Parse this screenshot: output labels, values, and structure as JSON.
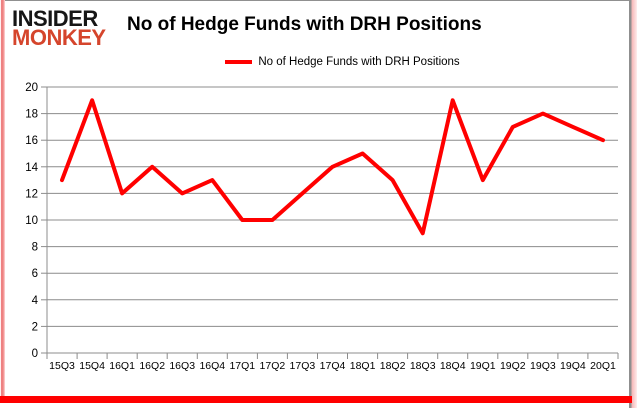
{
  "logo": {
    "line1": "INSIDER",
    "line2": "MONKEY"
  },
  "header": {
    "title": "No of Hedge Funds with DRH Positions"
  },
  "legend": {
    "label": "No of Hedge Funds with DRH Positions"
  },
  "colors": {
    "line": "#ff0000",
    "grid": "#8c8c8c",
    "logo_accent": "#d5452c",
    "frame_bottom": "#ff0000",
    "text": "#000000"
  },
  "chart_data": {
    "type": "line",
    "title": "No of Hedge Funds with DRH Positions",
    "categories": [
      "15Q3",
      "15Q4",
      "16Q1",
      "16Q2",
      "16Q3",
      "16Q4",
      "17Q1",
      "17Q2",
      "17Q3",
      "17Q4",
      "18Q1",
      "18Q2",
      "18Q3",
      "18Q4",
      "19Q1",
      "19Q2",
      "19Q3",
      "19Q4",
      "20Q1"
    ],
    "values": [
      13,
      19,
      12,
      14,
      12,
      13,
      10,
      10,
      12,
      14,
      15,
      13,
      9,
      19,
      13,
      17,
      18,
      17,
      16
    ],
    "xlabel": "",
    "ylabel": "",
    "ylim": [
      0,
      20
    ],
    "ytick_step": 2,
    "yticks": [
      0,
      2,
      4,
      6,
      8,
      10,
      12,
      14,
      16,
      18,
      20
    ],
    "grid": "horizontal",
    "legend_position": "top-center",
    "legend_entries": [
      "No of Hedge Funds with DRH Positions"
    ],
    "line_color": "#ff0000"
  }
}
